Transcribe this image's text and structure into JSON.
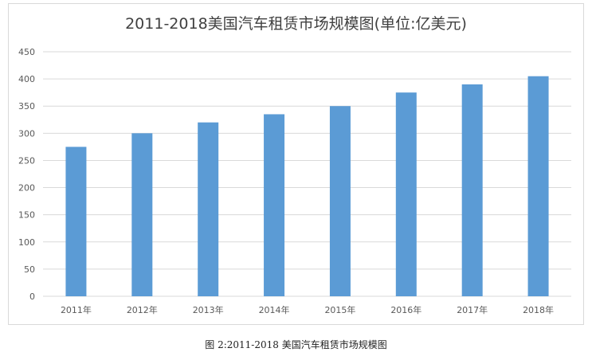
{
  "chart_data": {
    "type": "bar",
    "title": "2011-2018美国汽车租赁市场规模图(单位:亿美元)",
    "categories": [
      "2011年",
      "2012年",
      "2013年",
      "2014年",
      "2015年",
      "2016年",
      "2017年",
      "2018年"
    ],
    "values": [
      275,
      300,
      320,
      335,
      350,
      375,
      390,
      405
    ],
    "xlabel": "",
    "ylabel": "",
    "ylim": [
      0,
      450
    ],
    "yticks": [
      0,
      50,
      100,
      150,
      200,
      250,
      300,
      350,
      400,
      450
    ],
    "grid": true,
    "legend": "none",
    "bar_color": "#5b9bd5",
    "grid_color": "#d9d9d9"
  },
  "caption": "图 2:2011-2018 美国汽车租赁市场规模图"
}
